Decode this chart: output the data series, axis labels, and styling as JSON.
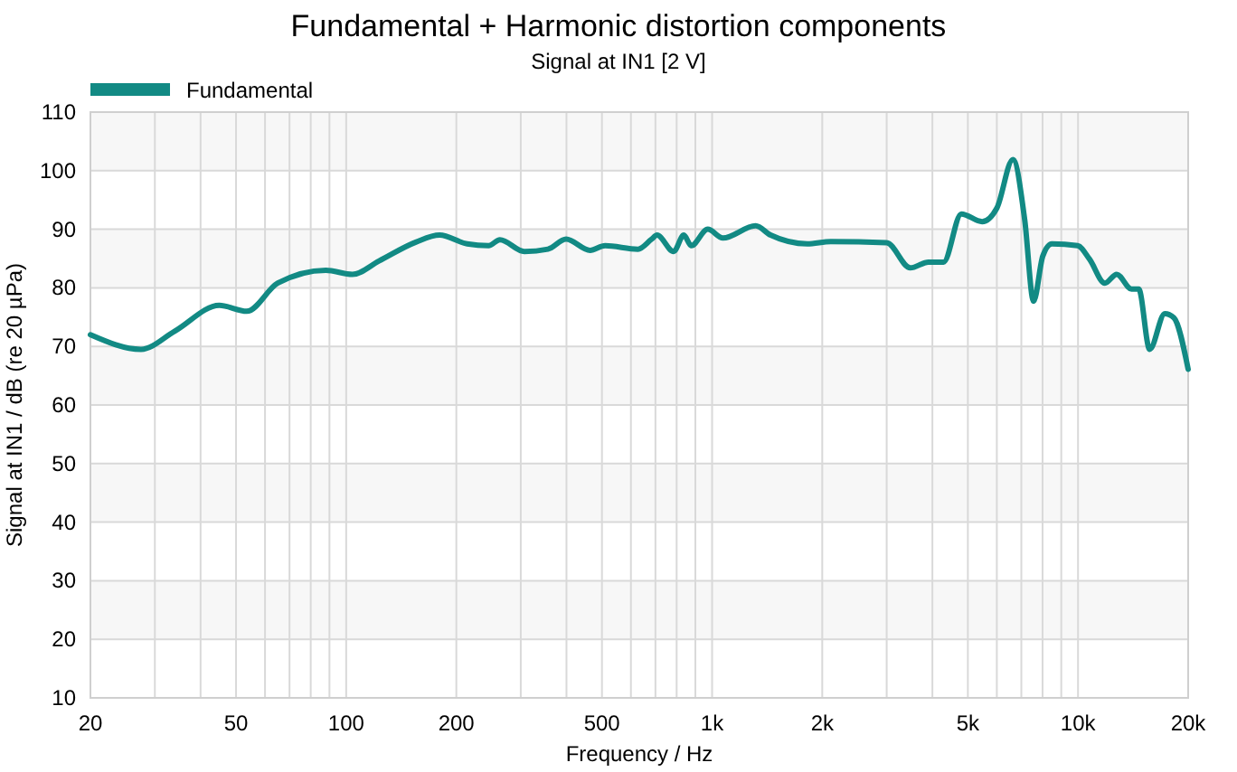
{
  "chart_data": {
    "type": "line",
    "title": "Fundamental + Harmonic distortion components",
    "subtitle": "Signal at IN1 [2 V]",
    "xlabel": "Frequency / Hz",
    "ylabel": "Signal at IN1 / dB (re 20 µPa)",
    "log": "x",
    "grid": true,
    "legend": "top left",
    "xlim": [
      20,
      20000
    ],
    "ylim": [
      10,
      110
    ],
    "xticks": [
      20,
      {
        "value": 30,
        "label": null
      },
      {
        "value": 40,
        "label": null
      },
      50,
      {
        "value": 60,
        "label": null
      },
      {
        "value": 70,
        "label": null
      },
      {
        "value": 80,
        "label": null
      },
      {
        "value": 90,
        "label": null
      },
      100,
      200,
      {
        "value": 300,
        "label": null
      },
      {
        "value": 400,
        "label": null
      },
      500,
      {
        "value": 600,
        "label": null
      },
      {
        "value": 700,
        "label": null
      },
      {
        "value": 800,
        "label": null
      },
      {
        "value": 900,
        "label": null
      },
      {
        "value": 1000,
        "label": "1k"
      },
      {
        "value": 2000,
        "label": "2k"
      },
      {
        "value": 3000,
        "label": null
      },
      {
        "value": 4000,
        "label": null
      },
      {
        "value": 5000,
        "label": "5k"
      },
      {
        "value": 6000,
        "label": null
      },
      {
        "value": 7000,
        "label": null
      },
      {
        "value": 8000,
        "label": null
      },
      {
        "value": 9000,
        "label": null
      },
      {
        "value": 10000,
        "label": "10k"
      },
      {
        "value": 20000,
        "label": "20k"
      }
    ],
    "yticks": [
      10,
      20,
      30,
      40,
      50,
      60,
      70,
      80,
      90,
      100,
      110
    ],
    "series": [
      {
        "name": "Fundamental",
        "color": "#128a84",
        "x": [
          20,
          27.5,
          34,
          45,
          53.5,
          65,
          88,
          104,
          123,
          155,
          180,
          214,
          245,
          263,
          307,
          356,
          399,
          464,
          510,
          627,
          683,
          707,
          785,
          837,
          877,
          973,
          1070,
          1315,
          1445,
          1820,
          2110,
          3000,
          3480,
          3900,
          4290,
          4800,
          5470,
          6000,
          6640,
          7150,
          7560,
          8010,
          8480,
          9980,
          10750,
          11840,
          12760,
          14000,
          14650,
          15700,
          17270,
          18280,
          20000
        ],
        "values": [
          72,
          69.5,
          72.6,
          77,
          76,
          80.8,
          83,
          82.3,
          84.6,
          87.8,
          89,
          87.5,
          87.2,
          88.2,
          86.2,
          86.6,
          88.3,
          86.4,
          87.2,
          86.6,
          88.3,
          89,
          86.2,
          89,
          87.2,
          90,
          88.5,
          90.6,
          89,
          87.5,
          87.9,
          87.7,
          83.4,
          84.4,
          84.4,
          92.6,
          91.3,
          93.6,
          101.9,
          91.6,
          77.7,
          85.4,
          87.5,
          87.2,
          84.9,
          80.8,
          82.3,
          79.8,
          79.8,
          69.5,
          75.6,
          74.9,
          66.1
        ]
      }
    ]
  }
}
